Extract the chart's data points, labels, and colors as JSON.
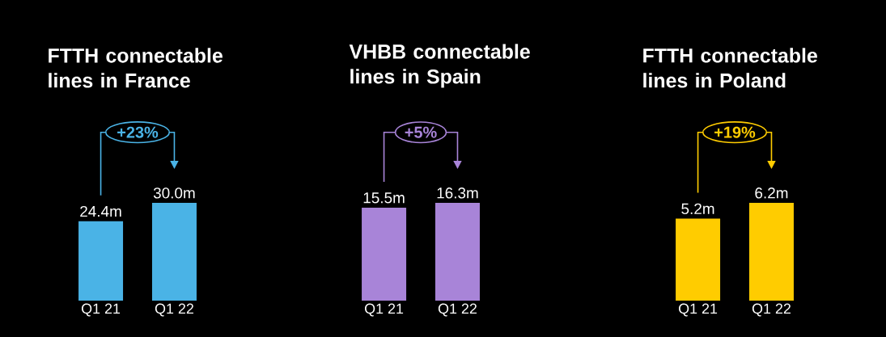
{
  "chart_data": [
    {
      "type": "bar",
      "title": "FTTH connectable lines in France",
      "categories": [
        "Q1 21",
        "Q1 22"
      ],
      "values": [
        24.4,
        30.0
      ],
      "value_labels": [
        "24.4m",
        "30.0m"
      ],
      "color": "#4ab3e6",
      "annotations": [
        "+23%"
      ]
    },
    {
      "type": "bar",
      "title": "VHBB connectable lines in Spain",
      "categories": [
        "Q1 21",
        "Q1 22"
      ],
      "values": [
        15.5,
        16.3
      ],
      "value_labels": [
        "15.5m",
        "16.3m"
      ],
      "color": "#a884d8",
      "annotations": [
        "+5%"
      ]
    },
    {
      "type": "bar",
      "title": "FTTH connectable lines in Poland",
      "categories": [
        "Q1 21",
        "Q1 22"
      ],
      "values": [
        5.2,
        6.2
      ],
      "value_labels": [
        "5.2m",
        "6.2m"
      ],
      "color": "#ffcc00",
      "annotations": [
        "+19%"
      ]
    }
  ]
}
